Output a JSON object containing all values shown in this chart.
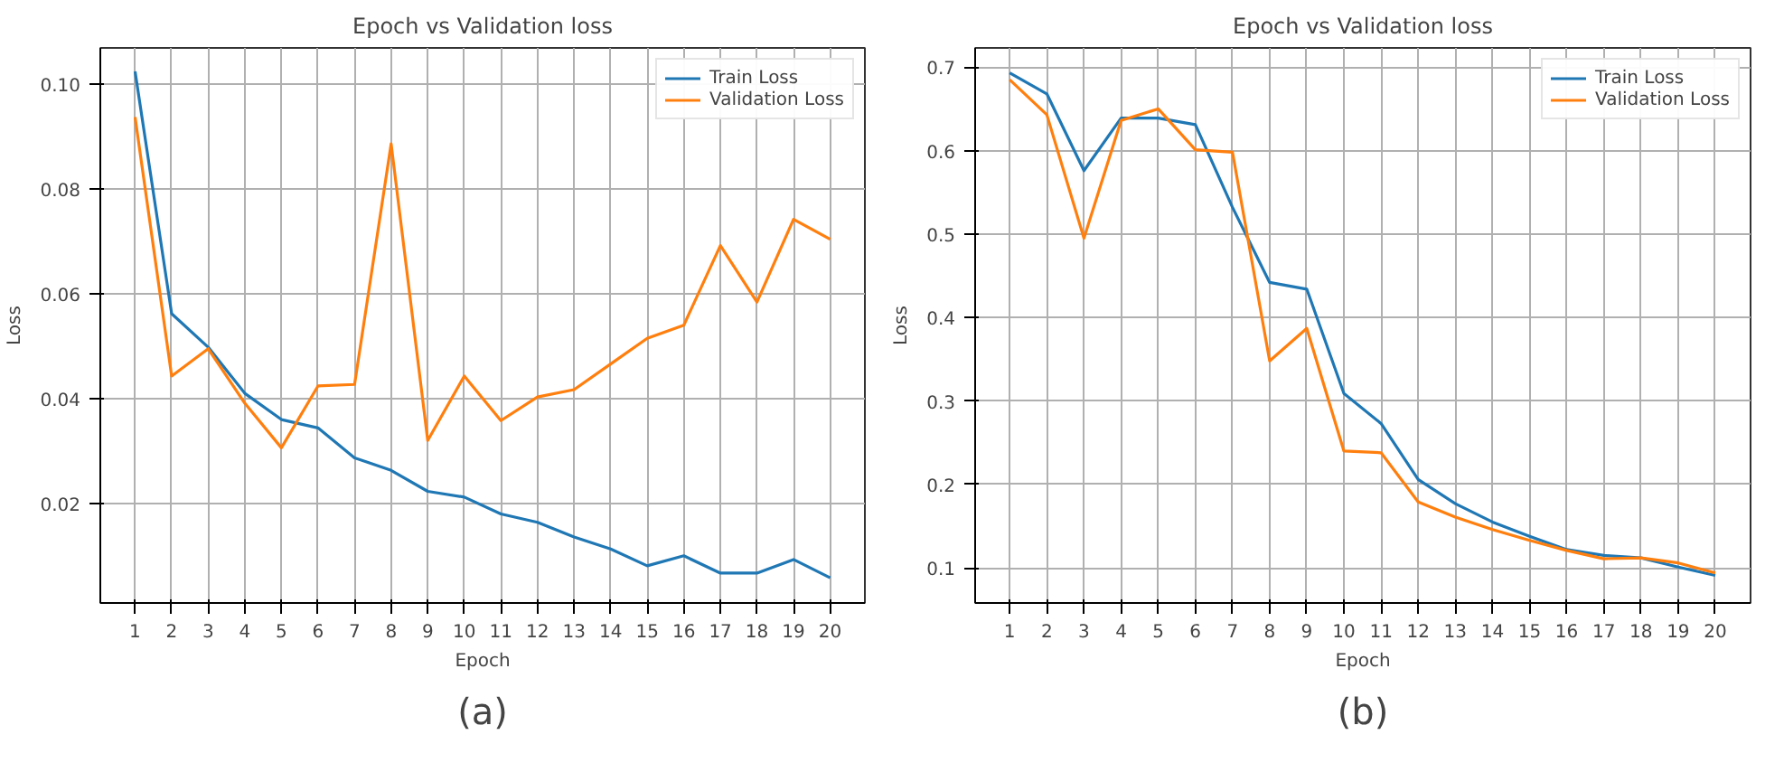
{
  "chart_data": [
    {
      "type": "line",
      "title": "Epoch vs Validation loss",
      "xlabel": "Epoch",
      "ylabel": "Loss",
      "annotations": [
        "(a)"
      ],
      "x": [
        1,
        2,
        3,
        4,
        5,
        6,
        7,
        8,
        9,
        10,
        11,
        12,
        13,
        14,
        15,
        16,
        17,
        18,
        19,
        20
      ],
      "xlim": [
        0.05,
        20.95
      ],
      "xticks": [
        1,
        2,
        3,
        4,
        5,
        6,
        7,
        8,
        9,
        10,
        11,
        12,
        13,
        14,
        15,
        16,
        17,
        18,
        19,
        20
      ],
      "ylim": [
        0.001,
        0.1069
      ],
      "yticks": [
        0.02,
        0.04,
        0.06,
        0.08,
        {
          "value": 0.1,
          "label": "0.10"
        }
      ],
      "grid": true,
      "legend": "top right",
      "series": [
        {
          "name": "Train Loss",
          "color": "#1f77b4",
          "values": [
            0.1024,
            0.0562,
            0.0498,
            0.041,
            0.036,
            0.0344,
            0.0287,
            0.0263,
            0.0223,
            0.0212,
            0.018,
            0.0164,
            0.0136,
            0.0113,
            0.0081,
            0.01,
            0.0067,
            0.0067,
            0.0093,
            0.0058
          ]
        },
        {
          "name": "Validation Loss",
          "color": "#ff7f0e",
          "values": [
            0.0937,
            0.0443,
            0.0495,
            0.0391,
            0.0306,
            0.0424,
            0.0427,
            0.0886,
            0.032,
            0.0443,
            0.0358,
            0.0403,
            0.0417,
            0.0466,
            0.0515,
            0.054,
            0.0692,
            0.0584,
            0.0742,
            0.0704
          ]
        }
      ]
    },
    {
      "type": "line",
      "title": "Epoch vs Validation loss",
      "xlabel": "Epoch",
      "ylabel": "Loss",
      "annotations": [
        "(b)"
      ],
      "x": [
        1,
        2,
        3,
        4,
        5,
        6,
        7,
        8,
        9,
        10,
        11,
        12,
        13,
        14,
        15,
        16,
        17,
        18,
        19,
        20
      ],
      "xlim": [
        0.07,
        20.95
      ],
      "xticks": [
        1,
        2,
        3,
        4,
        5,
        6,
        7,
        8,
        9,
        10,
        11,
        12,
        13,
        14,
        15,
        16,
        17,
        18,
        19,
        20
      ],
      "ylim": [
        0.058,
        0.723
      ],
      "yticks": [
        0.1,
        0.2,
        0.3,
        0.4,
        0.5,
        0.6,
        0.7
      ],
      "grid": true,
      "legend": "top right",
      "series": [
        {
          "name": "Train Loss",
          "color": "#1f77b4",
          "values": [
            0.693,
            0.668,
            0.576,
            0.639,
            0.639,
            0.631,
            0.532,
            0.442,
            0.434,
            0.309,
            0.273,
            0.206,
            0.177,
            0.155,
            0.138,
            0.122,
            0.115,
            0.112,
            0.101,
            0.091
          ]
        },
        {
          "name": "Validation Loss",
          "color": "#ff7f0e",
          "values": [
            0.685,
            0.643,
            0.495,
            0.636,
            0.65,
            0.601,
            0.598,
            0.348,
            0.387,
            0.24,
            0.238,
            0.179,
            0.161,
            0.146,
            0.133,
            0.121,
            0.111,
            0.112,
            0.106,
            0.094
          ]
        }
      ]
    }
  ]
}
